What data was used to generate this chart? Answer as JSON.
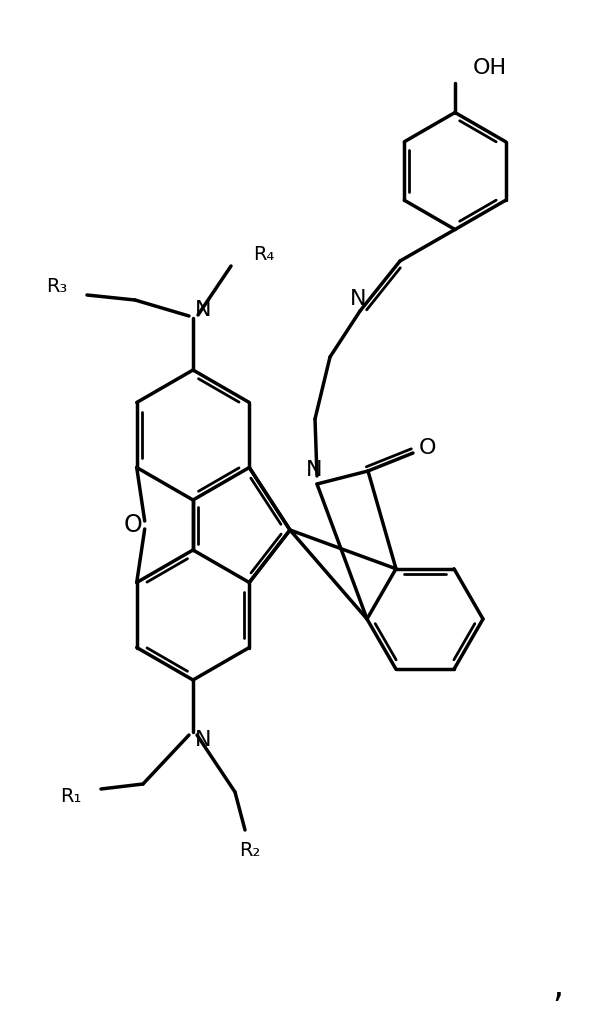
{
  "bg": "#ffffff",
  "lc": "#000000",
  "lw": 2.5,
  "lw_dbl": 2.0,
  "fs": 15,
  "figsize": [
    5.98,
    10.29
  ],
  "dpi": 100,
  "xlim": [
    0,
    598
  ],
  "ylim": [
    0,
    1029
  ]
}
